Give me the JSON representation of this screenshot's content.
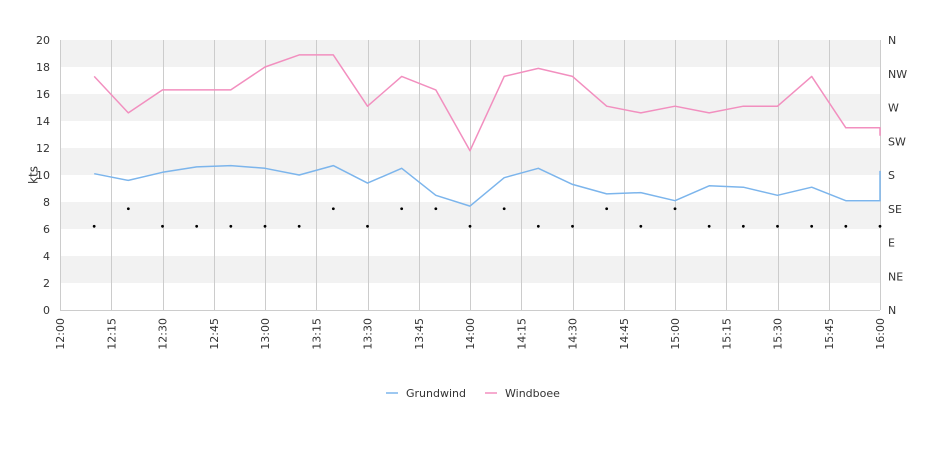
{
  "chart_data": {
    "type": "line",
    "ylabel": "kts",
    "ylim": [
      0,
      20
    ],
    "y_ticks": [
      "0",
      "2",
      "4",
      "6",
      "8",
      "10",
      "12",
      "14",
      "16",
      "18",
      "20"
    ],
    "x_range": [
      "12:00",
      "16:00"
    ],
    "x_ticks": [
      "12:00",
      "12:15",
      "12:30",
      "12:45",
      "13:00",
      "13:15",
      "13:30",
      "13:45",
      "14:00",
      "14:15",
      "14:30",
      "14:45",
      "15:00",
      "15:15",
      "15:30",
      "15:45",
      "16:00"
    ],
    "right_axis_labels": [
      "N",
      "NE",
      "E",
      "SE",
      "S",
      "SW",
      "W",
      "NW",
      "N"
    ],
    "grid": true,
    "legend_position": "bottom",
    "series": [
      {
        "name": "Grundwind",
        "color": "#7cb5ec",
        "x": [
          "12:10",
          "12:20",
          "12:30",
          "12:40",
          "12:50",
          "13:00",
          "13:10",
          "13:20",
          "13:30",
          "13:40",
          "13:50",
          "14:00",
          "14:10",
          "14:20",
          "14:30",
          "14:40",
          "14:50",
          "15:00",
          "15:10",
          "15:20",
          "15:30",
          "15:40",
          "15:50",
          "16:00",
          "16:00"
        ],
        "values": [
          10.1,
          9.6,
          10.2,
          10.6,
          10.7,
          10.5,
          10.0,
          10.7,
          9.4,
          10.5,
          8.5,
          7.7,
          9.8,
          10.5,
          9.3,
          8.6,
          8.7,
          8.1,
          9.2,
          9.1,
          8.5,
          9.1,
          8.1,
          8.1,
          10.3
        ]
      },
      {
        "name": "Windboee",
        "color": "#f28fbf",
        "x": [
          "12:10",
          "12:20",
          "12:30",
          "12:40",
          "12:50",
          "13:00",
          "13:10",
          "13:20",
          "13:30",
          "13:40",
          "13:50",
          "14:00",
          "14:10",
          "14:20",
          "14:30",
          "14:40",
          "14:50",
          "15:00",
          "15:10",
          "15:20",
          "15:30",
          "15:40",
          "15:50",
          "16:00",
          "16:00"
        ],
        "values": [
          17.3,
          14.6,
          16.3,
          16.3,
          16.3,
          18.0,
          18.9,
          18.9,
          15.1,
          17.3,
          16.3,
          11.8,
          17.3,
          17.9,
          17.3,
          15.1,
          14.6,
          15.1,
          14.6,
          15.1,
          15.1,
          17.3,
          13.5,
          13.5,
          12.9
        ]
      }
    ],
    "direction_markers": {
      "x": [
        "12:10",
        "12:20",
        "12:30",
        "12:40",
        "12:50",
        "13:00",
        "13:10",
        "13:20",
        "13:30",
        "13:40",
        "13:50",
        "14:00",
        "14:10",
        "14:20",
        "14:30",
        "14:40",
        "14:50",
        "15:00",
        "15:10",
        "15:20",
        "15:30",
        "15:40",
        "15:50",
        "16:00"
      ],
      "values": [
        6.2,
        7.5,
        6.2,
        6.2,
        6.2,
        6.2,
        6.2,
        7.5,
        6.2,
        7.5,
        7.5,
        6.2,
        7.5,
        6.2,
        6.2,
        7.5,
        6.2,
        7.5,
        6.2,
        6.2,
        6.2,
        6.2,
        6.2,
        6.2
      ]
    }
  }
}
